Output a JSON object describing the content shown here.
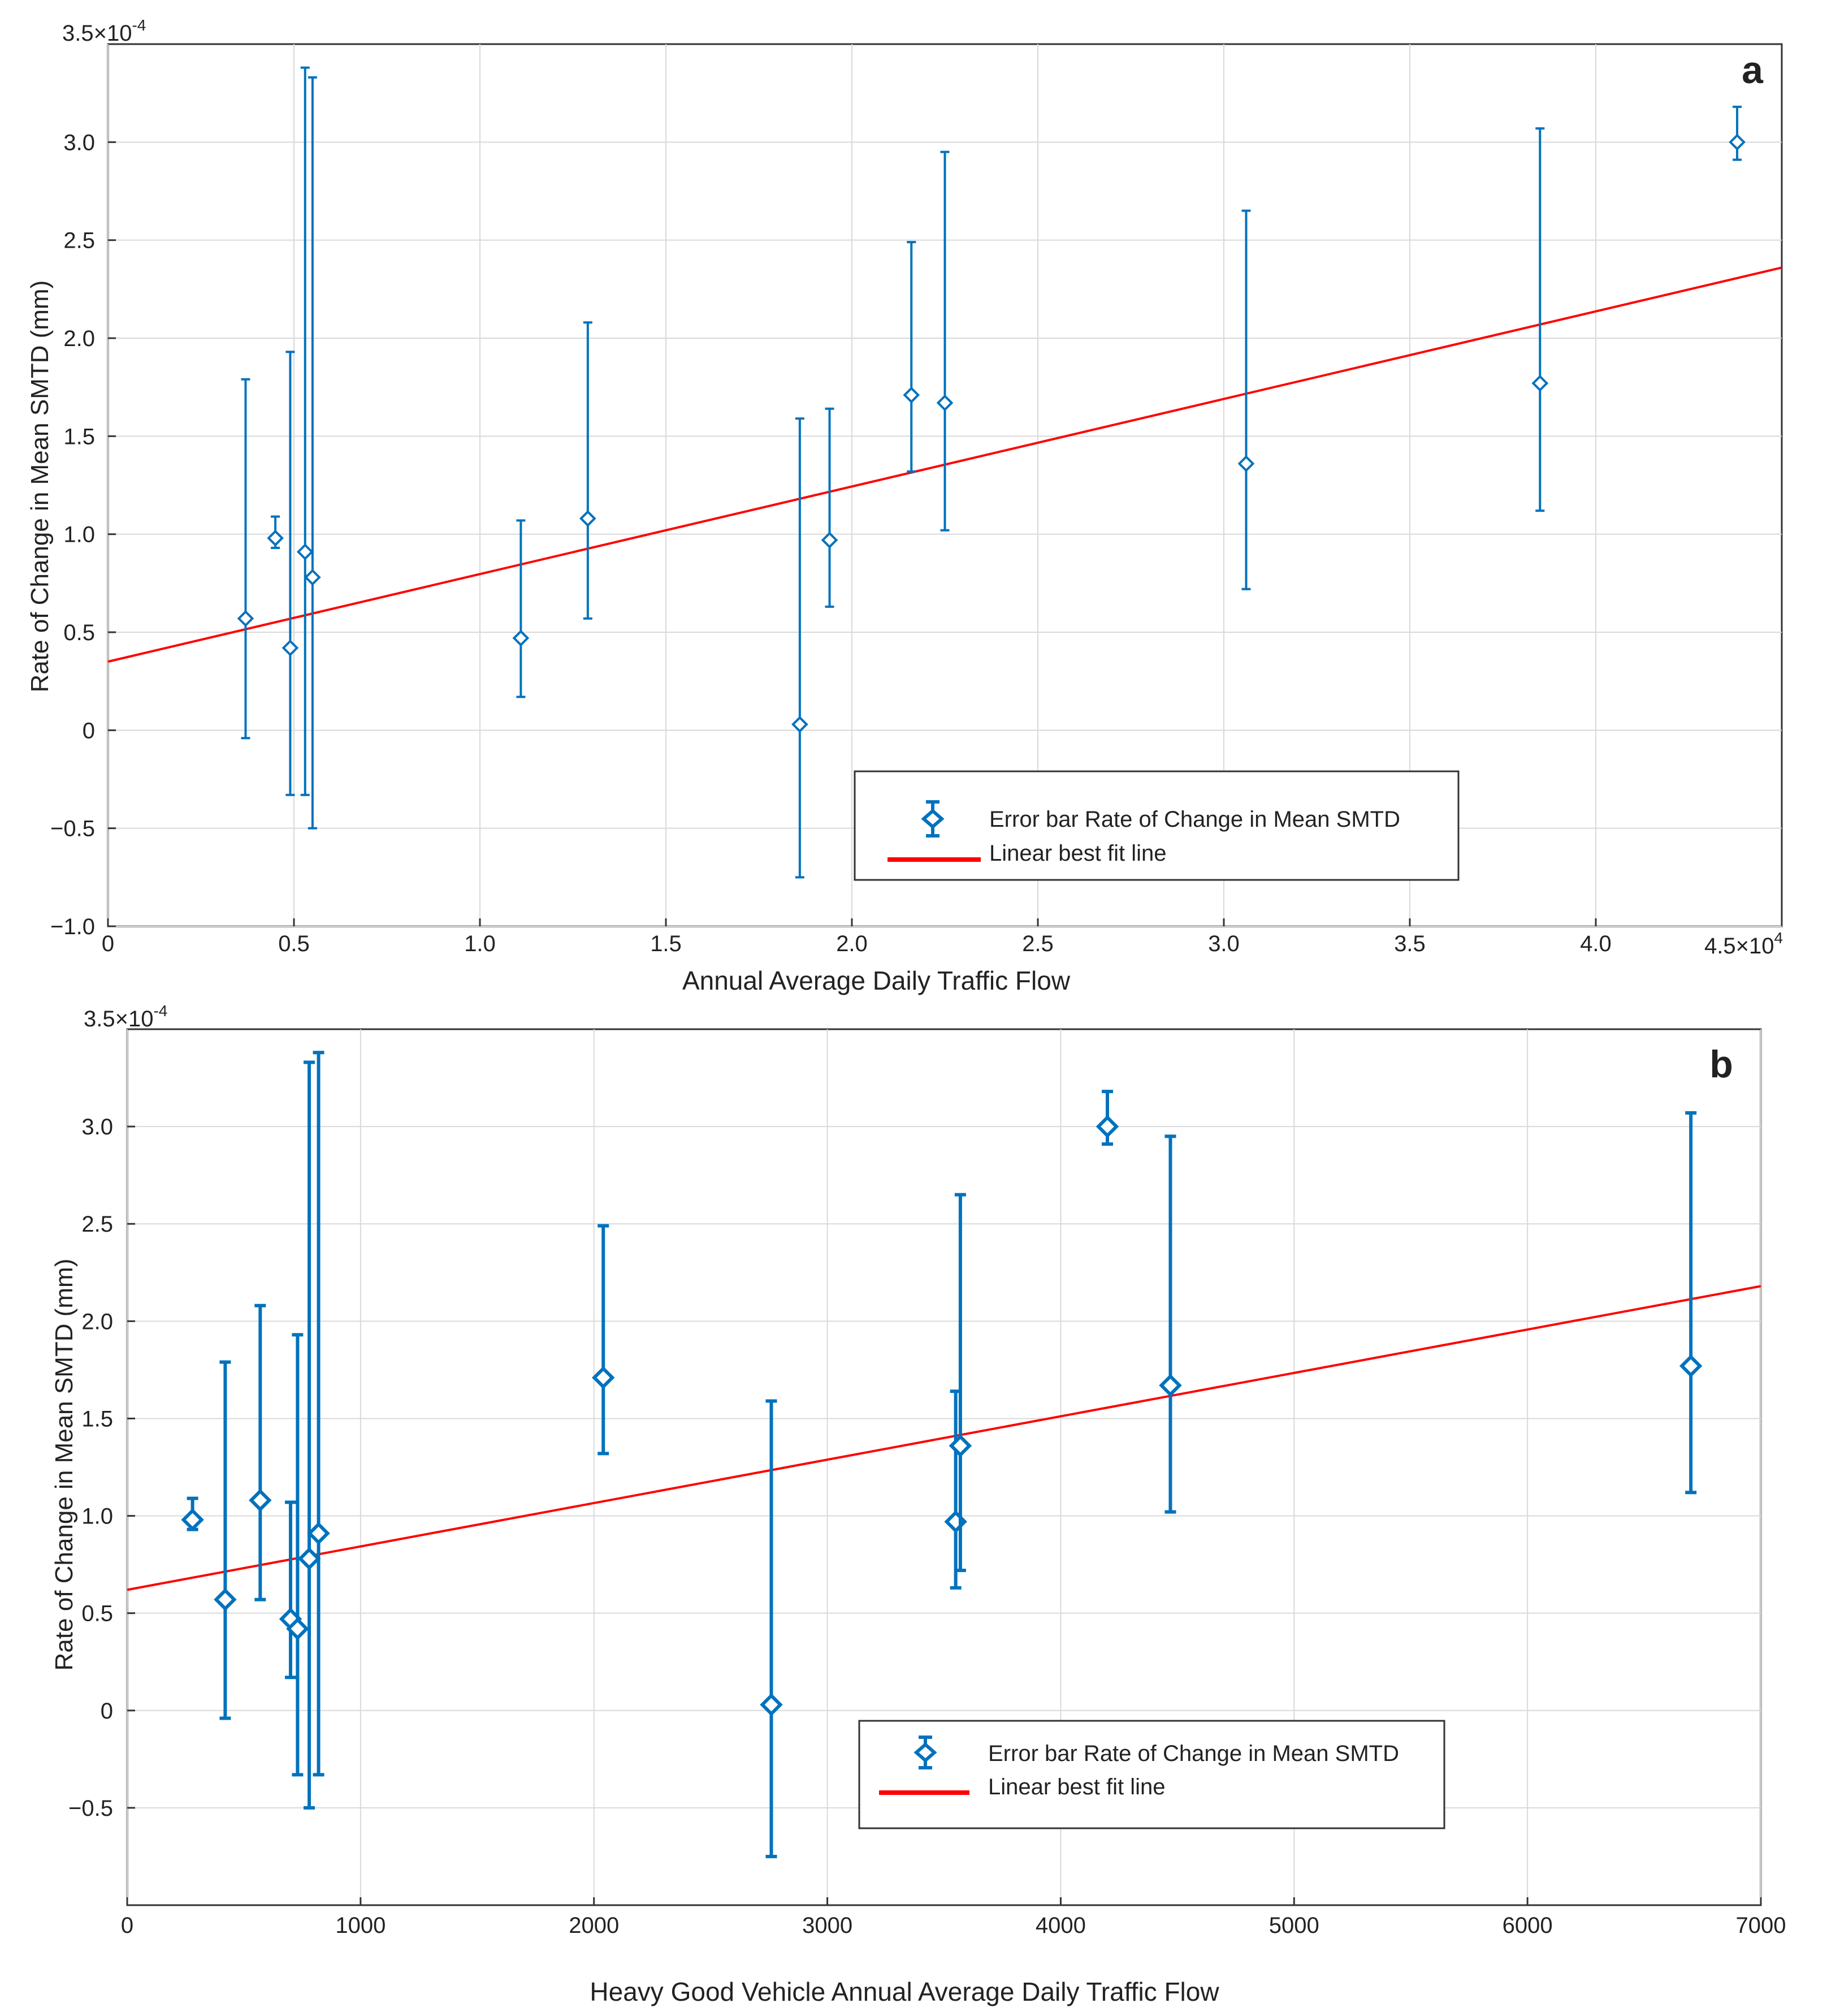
{
  "chart_data": [
    {
      "panel_label": "a",
      "type": "scatter",
      "title": "",
      "xlabel": "Annual Average Daily Traffic Flow",
      "ylabel": "Rate of Change  in Mean SMTD (mm)",
      "x_multiplier_text": "4.5×10",
      "x_multiplier_exp": "4",
      "y_multiplier_text": "3.5×10",
      "y_multiplier_exp": "-4",
      "xlim": [
        0,
        45000
      ],
      "ylim": [
        -1.0,
        3.5
      ],
      "xticks": [
        {
          "v": 0,
          "label": "0"
        },
        {
          "v": 5000,
          "label": "0.5"
        },
        {
          "v": 10000,
          "label": "1.0"
        },
        {
          "v": 15000,
          "label": "1.5"
        },
        {
          "v": 20000,
          "label": "2.0"
        },
        {
          "v": 25000,
          "label": "2.5"
        },
        {
          "v": 30000,
          "label": "3.0"
        },
        {
          "v": 35000,
          "label": "3.5"
        },
        {
          "v": 40000,
          "label": "4.0"
        }
      ],
      "yticks": [
        {
          "v": -1.0,
          "label": "−1.0"
        },
        {
          "v": -0.5,
          "label": "−0.5"
        },
        {
          "v": 0,
          "label": "0"
        },
        {
          "v": 0.5,
          "label": "0.5"
        },
        {
          "v": 1.0,
          "label": "1.0"
        },
        {
          "v": 1.5,
          "label": "1.5"
        },
        {
          "v": 2.0,
          "label": "2.0"
        },
        {
          "v": 2.5,
          "label": "2.5"
        },
        {
          "v": 3.0,
          "label": "3.0"
        }
      ],
      "series": [
        {
          "name": "Error bar Rate of Change in Mean SMTD",
          "color": "#0072BD",
          "points": [
            {
              "x": 3700,
              "y": 0.57,
              "lo": -0.04,
              "hi": 1.79
            },
            {
              "x": 4500,
              "y": 0.98,
              "lo": 0.93,
              "hi": 1.09
            },
            {
              "x": 4900,
              "y": 0.42,
              "lo": -0.33,
              "hi": 1.93
            },
            {
              "x": 5300,
              "y": 0.91,
              "lo": -0.33,
              "hi": 3.38
            },
            {
              "x": 5500,
              "y": 0.78,
              "lo": -0.5,
              "hi": 3.33
            },
            {
              "x": 11100,
              "y": 0.47,
              "lo": 0.17,
              "hi": 1.07
            },
            {
              "x": 12900,
              "y": 1.08,
              "lo": 0.57,
              "hi": 2.08
            },
            {
              "x": 18600,
              "y": 0.03,
              "lo": -0.75,
              "hi": 1.59
            },
            {
              "x": 19400,
              "y": 0.97,
              "lo": 0.63,
              "hi": 1.64
            },
            {
              "x": 21600,
              "y": 1.71,
              "lo": 1.32,
              "hi": 2.49
            },
            {
              "x": 22500,
              "y": 1.67,
              "lo": 1.02,
              "hi": 2.95
            },
            {
              "x": 30600,
              "y": 1.36,
              "lo": 0.72,
              "hi": 2.65
            },
            {
              "x": 38500,
              "y": 1.77,
              "lo": 1.12,
              "hi": 3.07
            },
            {
              "x": 43800,
              "y": 3.0,
              "lo": 2.91,
              "hi": 3.18
            }
          ]
        },
        {
          "name": "Linear best fit line",
          "color": "#FF0000",
          "type": "line",
          "x": [
            0,
            45000
          ],
          "y": [
            0.35,
            2.36
          ]
        }
      ],
      "legend": {
        "position": "lower-right"
      }
    },
    {
      "panel_label": "b",
      "type": "scatter",
      "title": "",
      "xlabel": "Heavy Good Vehicle Annual Average Daily Traffic Flow",
      "ylabel": "Rate of Change in Mean SMTD (mm)",
      "y_multiplier_text": "3.5×10",
      "y_multiplier_exp": "-4",
      "xlim": [
        0,
        7000
      ],
      "ylim": [
        -1.0,
        3.5
      ],
      "xticks": [
        {
          "v": 0,
          "label": "0"
        },
        {
          "v": 1000,
          "label": "1000"
        },
        {
          "v": 2000,
          "label": "2000"
        },
        {
          "v": 3000,
          "label": "3000"
        },
        {
          "v": 4000,
          "label": "4000"
        },
        {
          "v": 5000,
          "label": "5000"
        },
        {
          "v": 6000,
          "label": "6000"
        },
        {
          "v": 7000,
          "label": "7000"
        }
      ],
      "yticks": [
        {
          "v": -0.5,
          "label": "−0.5"
        },
        {
          "v": 0,
          "label": "0"
        },
        {
          "v": 0.5,
          "label": "0.5"
        },
        {
          "v": 1.0,
          "label": "1.0"
        },
        {
          "v": 1.5,
          "label": "1.5"
        },
        {
          "v": 2.0,
          "label": "2.0"
        },
        {
          "v": 2.5,
          "label": "2.5"
        },
        {
          "v": 3.0,
          "label": "3.0"
        }
      ],
      "series": [
        {
          "name": "Error bar Rate of Change in Mean SMTD",
          "color": "#0072BD",
          "points": [
            {
              "x": 280,
              "y": 0.98,
              "lo": 0.93,
              "hi": 1.09
            },
            {
              "x": 420,
              "y": 0.57,
              "lo": -0.04,
              "hi": 1.79
            },
            {
              "x": 570,
              "y": 1.08,
              "lo": 0.57,
              "hi": 2.08
            },
            {
              "x": 700,
              "y": 0.47,
              "lo": 0.17,
              "hi": 1.07
            },
            {
              "x": 730,
              "y": 0.42,
              "lo": -0.33,
              "hi": 1.93
            },
            {
              "x": 780,
              "y": 0.78,
              "lo": -0.5,
              "hi": 3.33
            },
            {
              "x": 820,
              "y": 0.91,
              "lo": -0.33,
              "hi": 3.38
            },
            {
              "x": 2040,
              "y": 1.71,
              "lo": 1.32,
              "hi": 2.49
            },
            {
              "x": 2760,
              "y": 0.03,
              "lo": -0.75,
              "hi": 1.59
            },
            {
              "x": 3550,
              "y": 0.97,
              "lo": 0.63,
              "hi": 1.64
            },
            {
              "x": 3570,
              "y": 1.36,
              "lo": 0.72,
              "hi": 2.65
            },
            {
              "x": 4200,
              "y": 3.0,
              "lo": 2.91,
              "hi": 3.18
            },
            {
              "x": 4470,
              "y": 1.67,
              "lo": 1.02,
              "hi": 2.95
            },
            {
              "x": 6700,
              "y": 1.77,
              "lo": 1.12,
              "hi": 3.07
            }
          ]
        },
        {
          "name": "Linear best fit line",
          "color": "#FF0000",
          "type": "line",
          "x": [
            0,
            7000
          ],
          "y": [
            0.62,
            2.18
          ]
        }
      ],
      "legend": {
        "position": "lower-center"
      }
    }
  ]
}
